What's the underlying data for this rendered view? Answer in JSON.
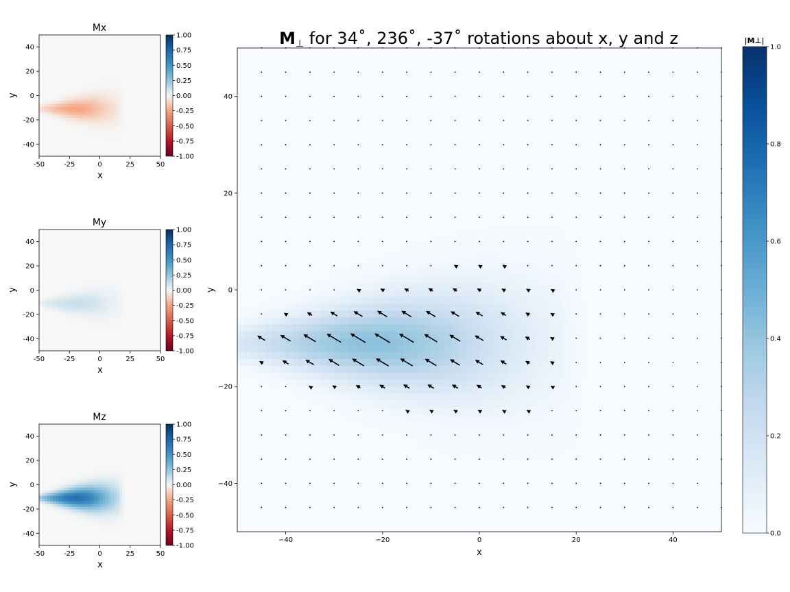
{
  "chart_data": [
    {
      "id": "mx",
      "type": "heatmap",
      "title": "Mx",
      "xlabel": "x",
      "ylabel": "y",
      "xlim": [
        -50,
        50
      ],
      "ylim": [
        -50,
        50
      ],
      "xticks": [
        -50,
        -25,
        0,
        25,
        50
      ],
      "yticks": [
        -40,
        -20,
        0,
        20,
        40
      ],
      "colormap": "RdBu",
      "clim": [
        -1.0,
        1.0
      ],
      "colorbar_ticks": [
        "1.00",
        "0.75",
        "0.50",
        "0.25",
        "0.00",
        "-0.25",
        "-0.50",
        "-0.75",
        "-1.00"
      ],
      "field": {
        "peak": -0.25,
        "center": [
          -20,
          -11
        ],
        "x_extent": [
          -52,
          15
        ],
        "y_half_width_at_edge": [
          3,
          17
        ]
      }
    },
    {
      "id": "my",
      "type": "heatmap",
      "title": "My",
      "xlabel": "x",
      "ylabel": "y",
      "xlim": [
        -50,
        50
      ],
      "ylim": [
        -50,
        50
      ],
      "xticks": [
        -50,
        -25,
        0,
        25,
        50
      ],
      "yticks": [
        -40,
        -20,
        0,
        20,
        40
      ],
      "colormap": "RdBu",
      "clim": [
        -1.0,
        1.0
      ],
      "colorbar_ticks": [
        "1.00",
        "0.75",
        "0.50",
        "0.25",
        "0.00",
        "-0.25",
        "-0.50",
        "-0.75",
        "-1.00"
      ],
      "field": {
        "peak": 0.12,
        "center": [
          -20,
          -11
        ],
        "x_extent": [
          -52,
          15
        ],
        "y_half_width_at_edge": [
          3,
          17
        ]
      }
    },
    {
      "id": "mz",
      "type": "heatmap",
      "title": "Mz",
      "xlabel": "x",
      "ylabel": "y",
      "xlim": [
        -50,
        50
      ],
      "ylim": [
        -50,
        50
      ],
      "xticks": [
        -50,
        -25,
        0,
        25,
        50
      ],
      "yticks": [
        -40,
        -20,
        0,
        20,
        40
      ],
      "colormap": "RdBu",
      "clim": [
        -1.0,
        1.0
      ],
      "colorbar_ticks": [
        "1.00",
        "0.75",
        "0.50",
        "0.25",
        "0.00",
        "-0.25",
        "-0.50",
        "-0.75",
        "-1.00"
      ],
      "field": {
        "peak": 0.7,
        "center": [
          -20,
          -11
        ],
        "x_extent": [
          -52,
          15
        ],
        "y_half_width_at_edge": [
          3,
          17
        ]
      }
    },
    {
      "id": "mperp",
      "type": "heatmap",
      "title_bold": "M",
      "title_sub": "⊥",
      "title_rest": " for 34˚, 236˚, -37˚ rotations about x, y and z",
      "xlabel": "x",
      "ylabel": "y",
      "xlim": [
        -50,
        50
      ],
      "ylim": [
        -50,
        50
      ],
      "xticks": [
        -40,
        -20,
        0,
        20,
        40
      ],
      "yticks": [
        -40,
        -20,
        0,
        20,
        40
      ],
      "xtick_labels": [
        "−40",
        "−20",
        "0",
        "20",
        "40"
      ],
      "ytick_labels": [
        "−40",
        "−20",
        "0",
        "20",
        "40"
      ],
      "colormap": "Blues",
      "clim": [
        0.0,
        1.0
      ],
      "colorbar_title": "|M⊥|",
      "colorbar_ticks": [
        "1.0",
        "0.8",
        "0.6",
        "0.4",
        "0.2",
        "0.0"
      ],
      "field": {
        "peak": 0.42,
        "center": [
          -22,
          -11
        ],
        "x_extent": [
          -52,
          17
        ],
        "y_half_width_at_edge": [
          4,
          19
        ]
      },
      "quiver": {
        "grid_x_start": -45,
        "grid_y_start": -45,
        "grid_step": 5,
        "grid_count": 20,
        "direction": "up-left",
        "max_length": 8
      }
    }
  ]
}
